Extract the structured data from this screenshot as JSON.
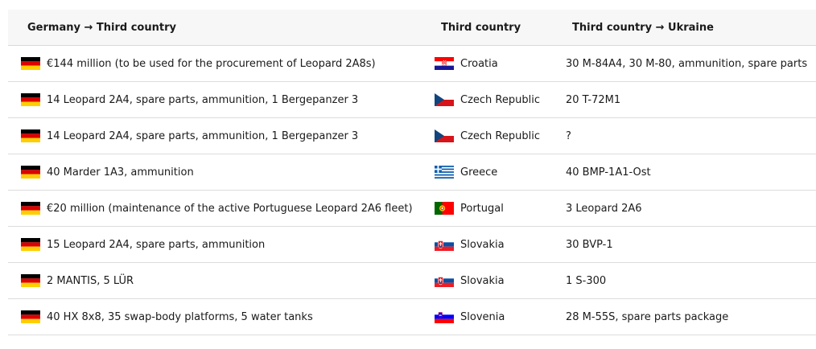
{
  "table": {
    "headers": {
      "col1": "Germany → Third country",
      "col2": "Third country",
      "col3": "Third country → Ukraine"
    },
    "rows": [
      {
        "from_flag": "germany-flag",
        "germany_to_third": "€144 million (to be used for the procurement of Leopard 2A8s)",
        "country_flag": "croatia-flag",
        "country": "Croatia",
        "third_to_ukraine": "30 M-84A4, 30 M-80, ammunition, spare parts"
      },
      {
        "from_flag": "germany-flag",
        "germany_to_third": "14 Leopard 2A4, spare parts, ammunition, 1 Bergepanzer 3",
        "country_flag": "czech-flag",
        "country": "Czech Republic",
        "third_to_ukraine": "20 T-72M1"
      },
      {
        "from_flag": "germany-flag",
        "germany_to_third": "14 Leopard 2A4, spare parts, ammunition, 1 Bergepanzer 3",
        "country_flag": "czech-flag",
        "country": "Czech Republic",
        "third_to_ukraine": "?"
      },
      {
        "from_flag": "germany-flag",
        "germany_to_third": "40 Marder 1A3, ammunition",
        "country_flag": "greece-flag",
        "country": "Greece",
        "third_to_ukraine": "40 BMP-1A1-Ost"
      },
      {
        "from_flag": "germany-flag",
        "germany_to_third": "€20 million (maintenance of the active Portuguese Leopard 2A6 fleet)",
        "country_flag": "portugal-flag",
        "country": "Portugal",
        "third_to_ukraine": "3 Leopard 2A6"
      },
      {
        "from_flag": "germany-flag",
        "germany_to_third": "15 Leopard 2A4, spare parts, ammunition",
        "country_flag": "slovakia-flag",
        "country": "Slovakia",
        "third_to_ukraine": "30 BVP-1"
      },
      {
        "from_flag": "germany-flag",
        "germany_to_third": "2 MANTIS, 5 LÜR",
        "country_flag": "slovakia-flag",
        "country": "Slovakia",
        "third_to_ukraine": "1 S-300"
      },
      {
        "from_flag": "germany-flag",
        "germany_to_third": "40 HX 8x8, 35 swap-body platforms, 5 water tanks",
        "country_flag": "slovenia-flag",
        "country": "Slovenia",
        "third_to_ukraine": "28 M-55S, spare parts package"
      }
    ]
  }
}
